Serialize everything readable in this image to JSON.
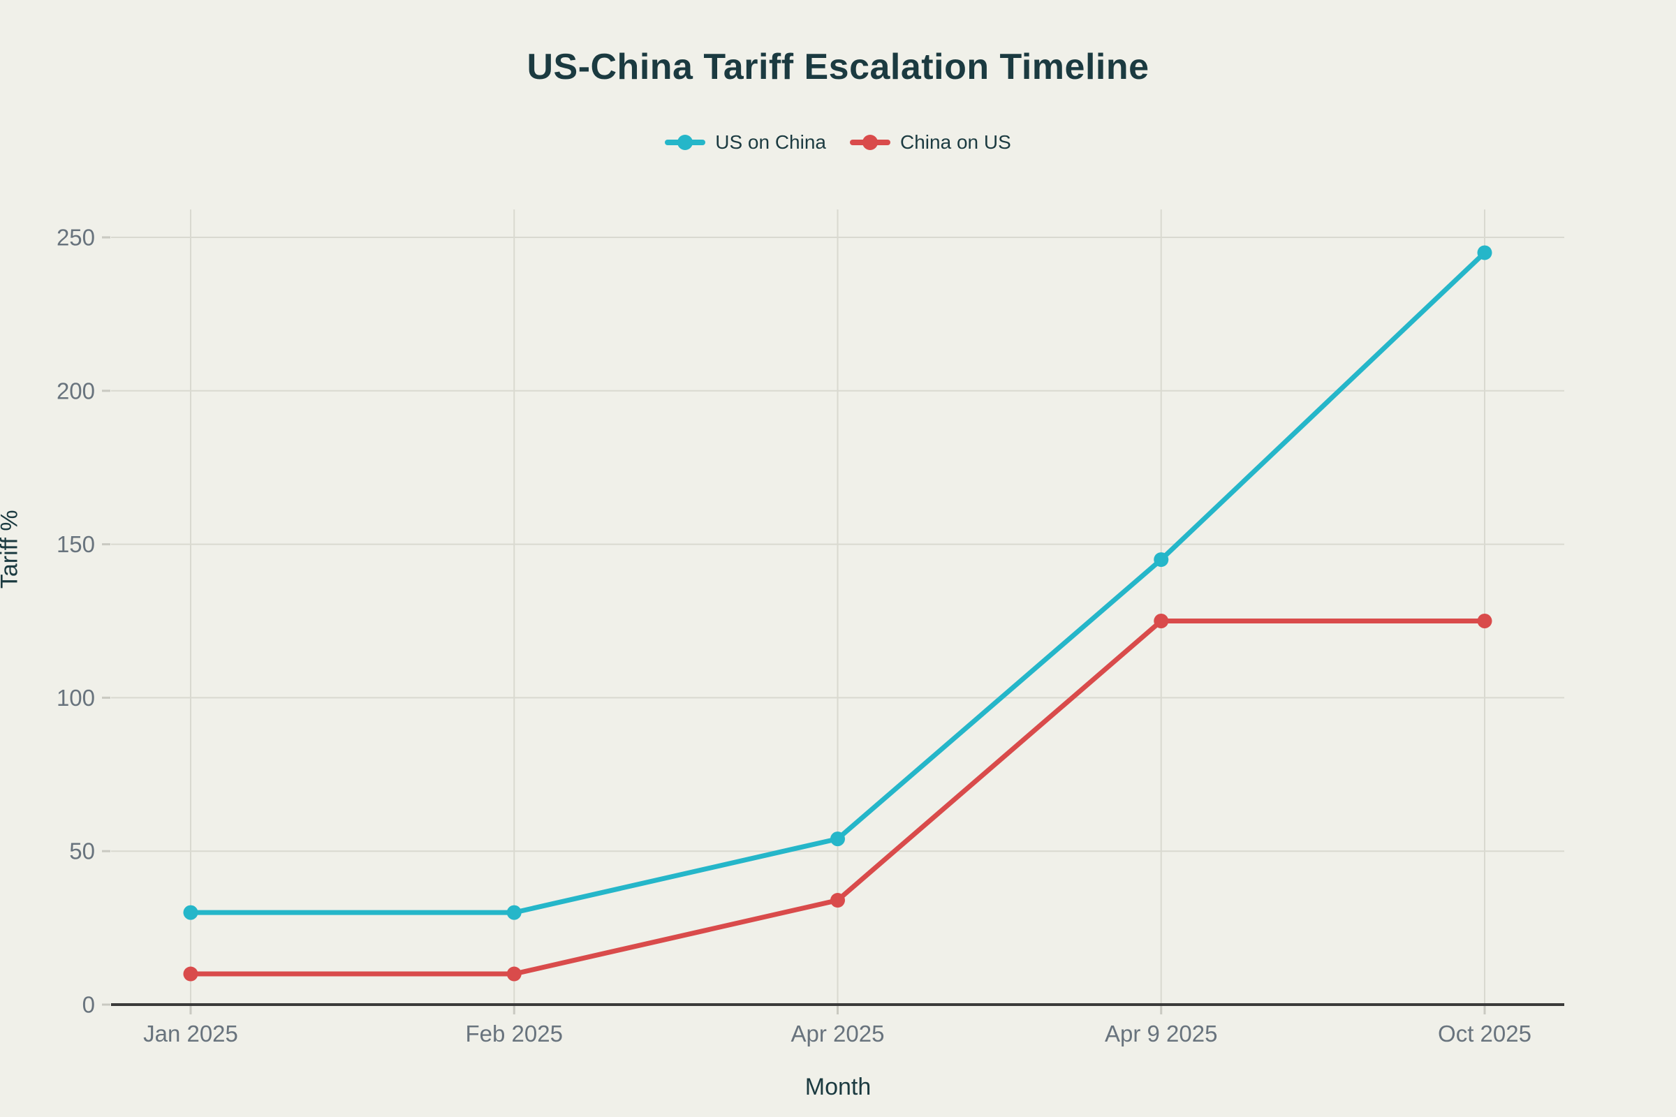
{
  "chart_data": {
    "type": "line",
    "title": "US-China Tariff Escalation Timeline",
    "xlabel": "Month",
    "ylabel": "Tariff %",
    "categories": [
      "Jan 2025",
      "Feb 2025",
      "Apr 2025",
      "Apr 9 2025",
      "Oct 2025"
    ],
    "series": [
      {
        "name": "US on China",
        "color": "#25b6c9",
        "values": [
          30,
          30,
          54,
          145,
          245
        ]
      },
      {
        "name": "China on US",
        "color": "#d94b4b",
        "values": [
          10,
          10,
          34,
          125,
          125
        ]
      }
    ],
    "ylim": [
      0,
      250
    ],
    "yticks": [
      0,
      50,
      100,
      150,
      200,
      250
    ],
    "grid": true,
    "legend_position": "top-center",
    "marker": "circle"
  },
  "style": {
    "background": "#f0f0e9",
    "grid_color": "#d9d9d0",
    "tick_color": "#c9c9c1",
    "axis_line_color": "#3a3a3a",
    "tick_label_color": "#68737d",
    "text_color": "#1b3a40"
  }
}
